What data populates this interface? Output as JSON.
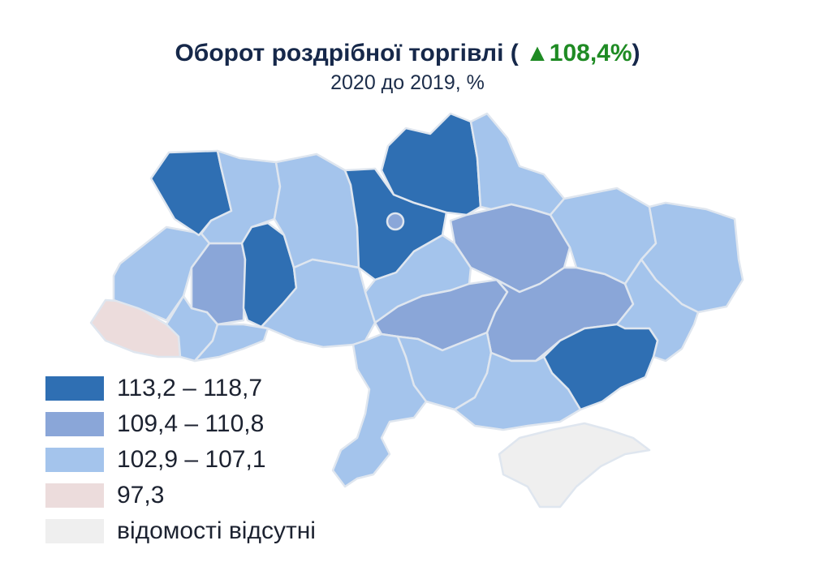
{
  "header": {
    "title_text": "Оборот роздрібної торгівлі (",
    "title_change": "▲108,4%",
    "title_close": ")",
    "subtitle": "2020 до 2019, %"
  },
  "colors": {
    "class_high": "#2f6fb3",
    "class_mid": "#8aa6d8",
    "class_low": "#a4c4ec",
    "class_min": "#ecdcdc",
    "class_na": "#efefef",
    "border": "#dfe6ef",
    "change_up": "#1f8b24"
  },
  "legend": [
    {
      "label": "113,2 – 118,7",
      "class": "class_high"
    },
    {
      "label": "109,4 – 110,8",
      "class": "class_mid"
    },
    {
      "label": "102,9 – 107,1",
      "class": "class_low"
    },
    {
      "label": "97,3",
      "class": "class_min"
    },
    {
      "label": "відомості відсутні",
      "class": "class_na"
    }
  ],
  "regions": [
    {
      "id": "volyn",
      "class": "class_high"
    },
    {
      "id": "rivne",
      "class": "class_low"
    },
    {
      "id": "zhytomyr",
      "class": "class_low"
    },
    {
      "id": "kyiv-oblast",
      "class": "class_high"
    },
    {
      "id": "kyiv-city",
      "class": "class_mid"
    },
    {
      "id": "chernihiv",
      "class": "class_high"
    },
    {
      "id": "sumy",
      "class": "class_low"
    },
    {
      "id": "lviv",
      "class": "class_low"
    },
    {
      "id": "ternopil",
      "class": "class_mid"
    },
    {
      "id": "khmelnytskyi",
      "class": "class_high"
    },
    {
      "id": "vinnytsia",
      "class": "class_low"
    },
    {
      "id": "cherkasy",
      "class": "class_low"
    },
    {
      "id": "poltava",
      "class": "class_mid"
    },
    {
      "id": "kharkiv",
      "class": "class_low"
    },
    {
      "id": "luhansk",
      "class": "class_low"
    },
    {
      "id": "zakarpattia",
      "class": "class_min"
    },
    {
      "id": "ivano-frankivsk",
      "class": "class_low"
    },
    {
      "id": "chernivtsi",
      "class": "class_low"
    },
    {
      "id": "kirovohrad",
      "class": "class_mid"
    },
    {
      "id": "dnipropetrovsk",
      "class": "class_mid"
    },
    {
      "id": "donetsk",
      "class": "class_low"
    },
    {
      "id": "odesa",
      "class": "class_low"
    },
    {
      "id": "mykolaiv",
      "class": "class_low"
    },
    {
      "id": "kherson",
      "class": "class_low"
    },
    {
      "id": "zaporizhzhia",
      "class": "class_high"
    },
    {
      "id": "crimea",
      "class": "class_na"
    }
  ]
}
